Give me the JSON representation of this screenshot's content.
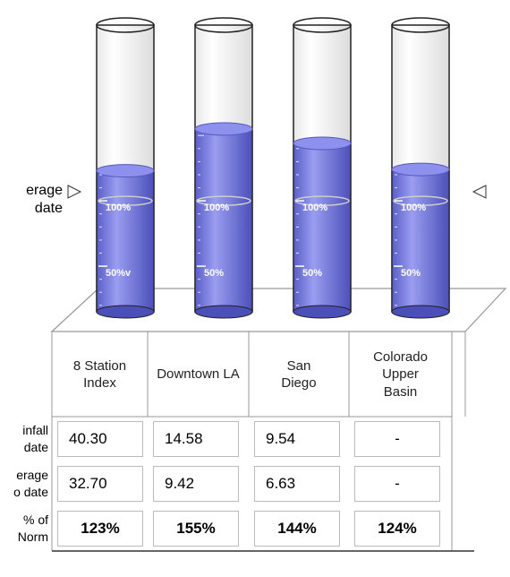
{
  "chart_data": {
    "type": "gauge",
    "categories": [
      "8 Station Index",
      "Downtown LA",
      "San Diego",
      "Colorado Upper Basin"
    ],
    "values": [
      123,
      155,
      144,
      124
    ],
    "value_labels": [
      "123%",
      "155%",
      "144%",
      "124%"
    ],
    "color": "#7c80e6",
    "ylim": [
      0,
      240
    ],
    "gauge_ticks": [
      [
        {
          "value": 50,
          "label": "50%v"
        },
        {
          "value": 100,
          "label": "100%"
        }
      ],
      [
        {
          "value": 50,
          "label": "50%"
        },
        {
          "value": 100,
          "label": "100%"
        }
      ],
      [
        {
          "value": 50,
          "label": "50%"
        },
        {
          "value": 100,
          "label": "100%"
        }
      ],
      [
        {
          "value": 50,
          "label": "50%"
        },
        {
          "value": 100,
          "label": "100%"
        }
      ]
    ],
    "marker_label": [
      "erage",
      "date"
    ]
  },
  "table": {
    "rows": [
      {
        "label": [
          "infall",
          "date"
        ],
        "cells": [
          "40.30",
          "14.58",
          "9.54",
          "-"
        ]
      },
      {
        "label": [
          "erage",
          "o date"
        ],
        "cells": [
          "32.70",
          "9.42",
          "6.63",
          "-"
        ]
      }
    ],
    "norm_label": [
      "% of",
      "Norm"
    ]
  }
}
